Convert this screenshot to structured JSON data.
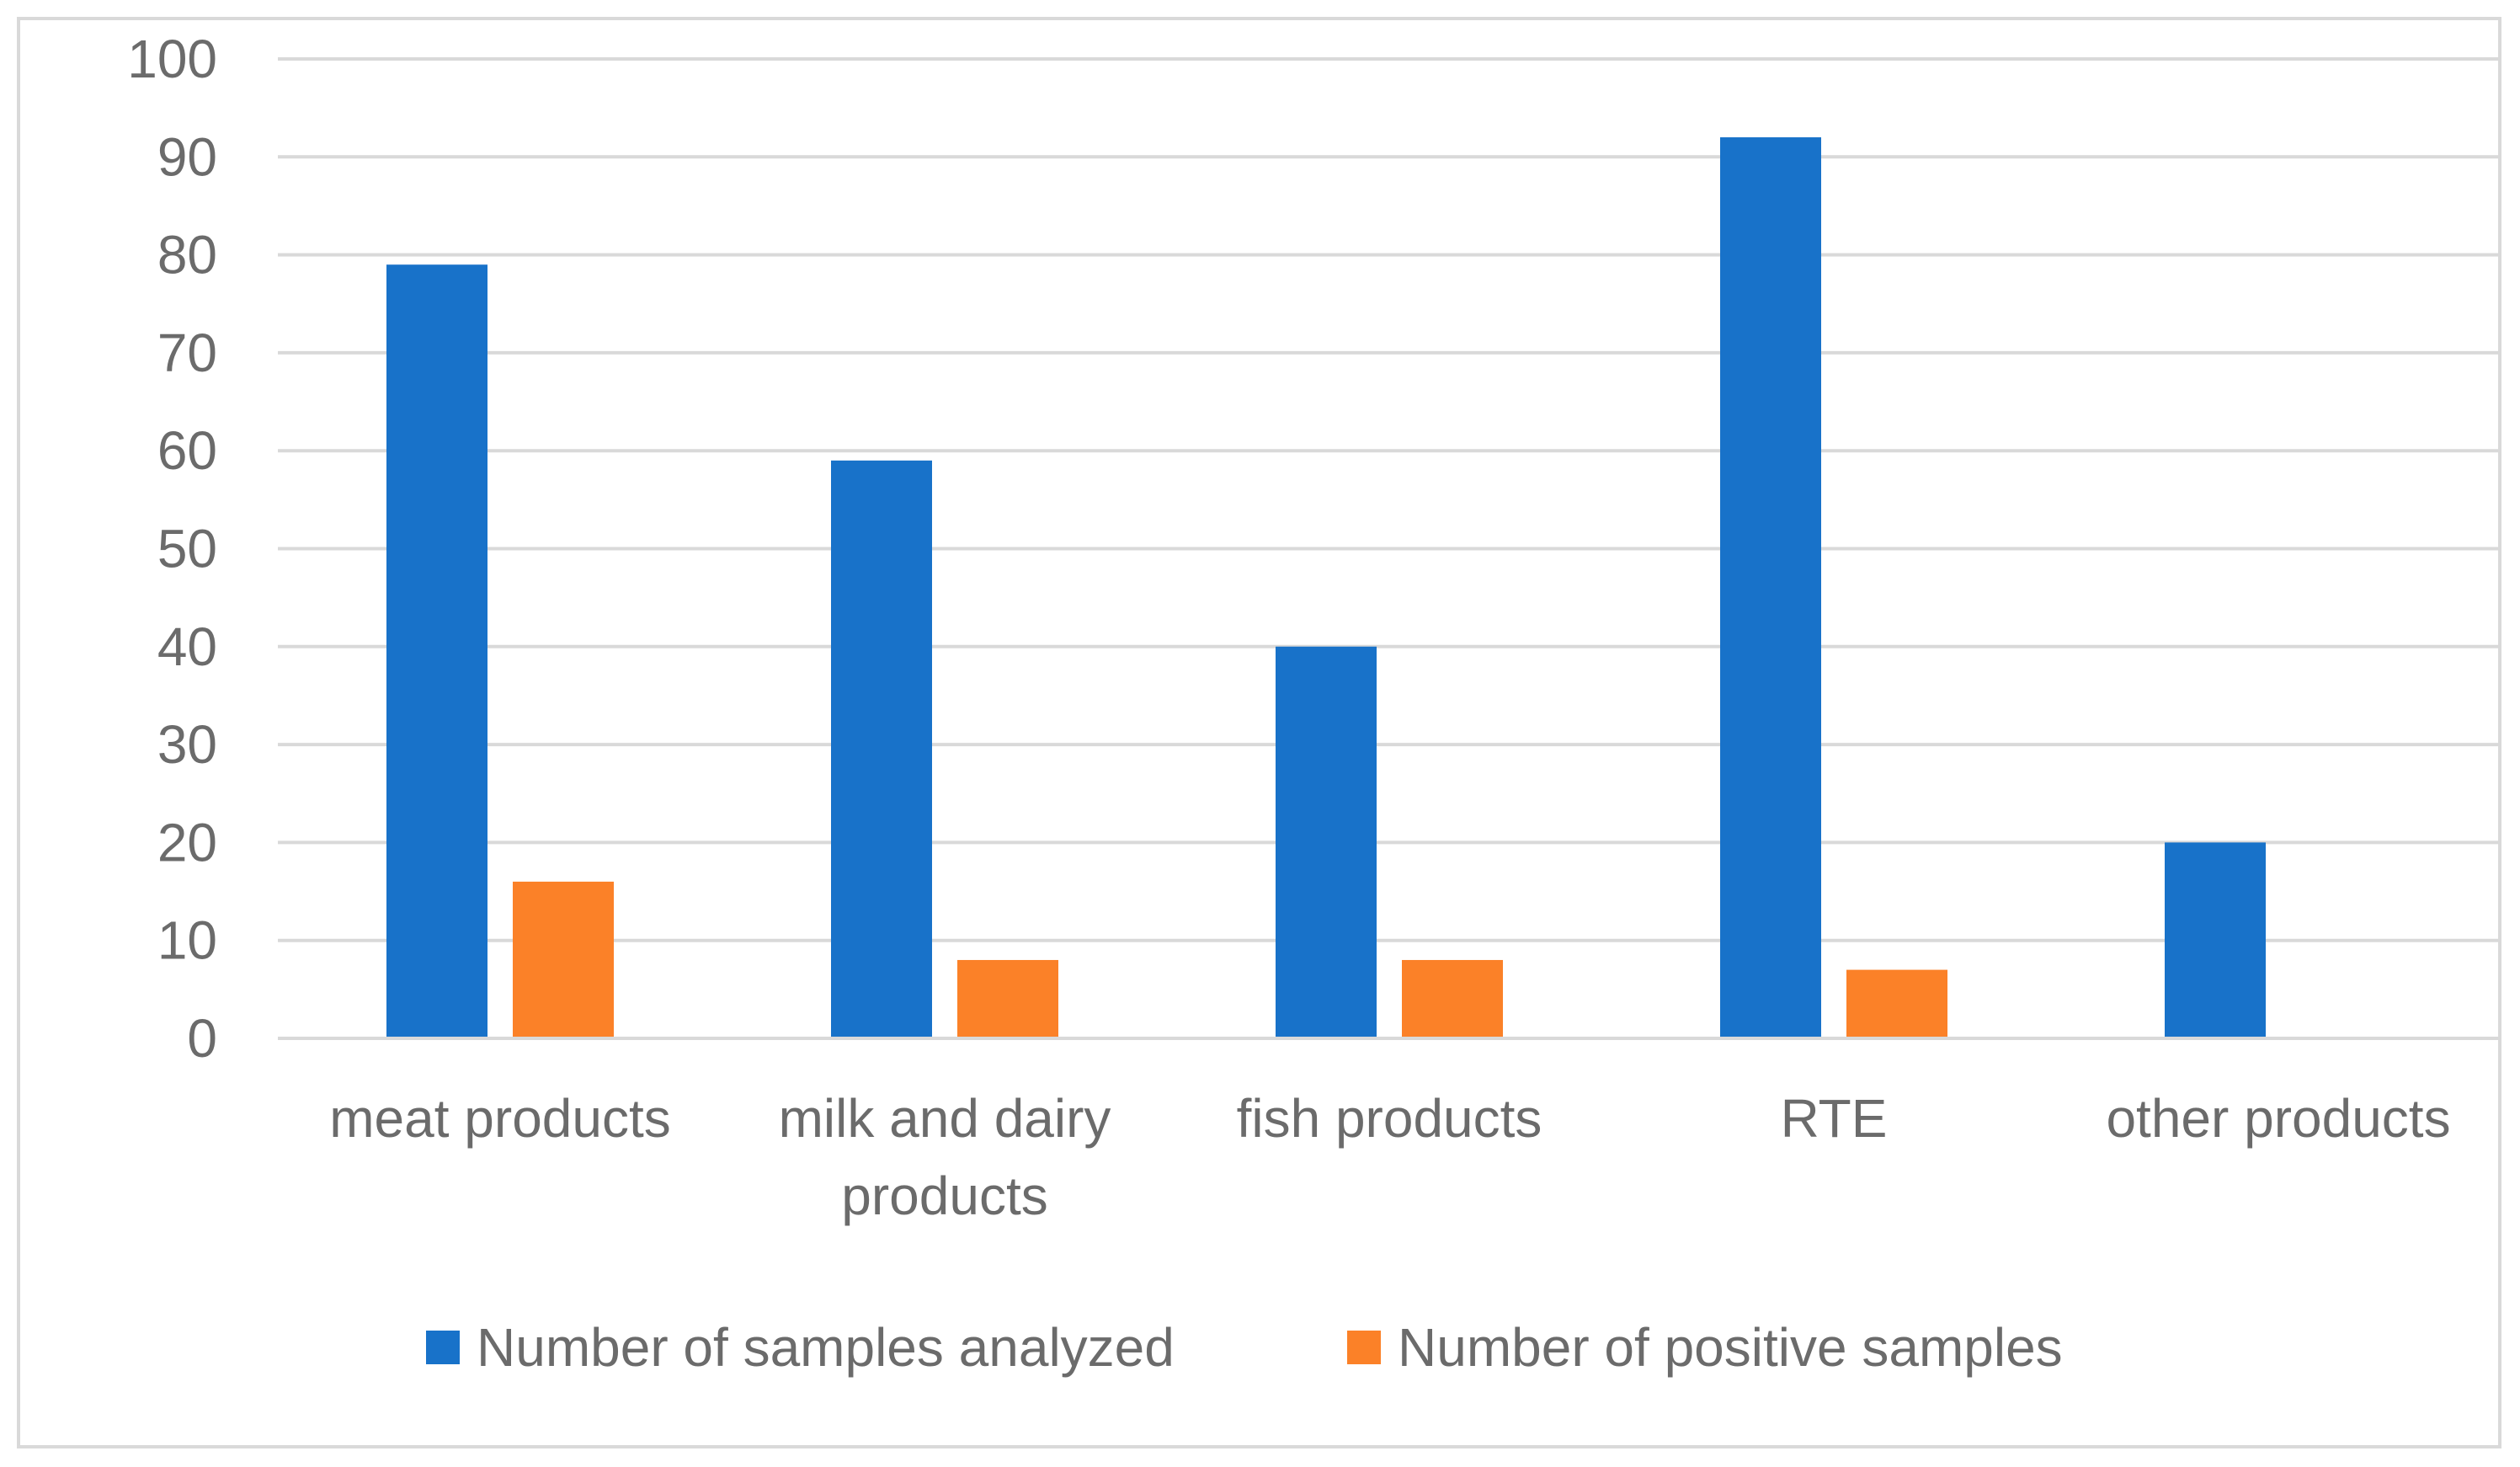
{
  "chart_data": {
    "type": "bar",
    "title": "",
    "xlabel": "",
    "ylabel": "",
    "categories": [
      [
        "meat products"
      ],
      [
        "milk and dairy",
        "products"
      ],
      [
        "fish products"
      ],
      [
        "RTE"
      ],
      [
        "other products"
      ]
    ],
    "series": [
      {
        "name": "Number of samples analyzed",
        "color": "#1872c9",
        "values": [
          79,
          59,
          40,
          92,
          20
        ]
      },
      {
        "name": "Number of positive samples",
        "color": "#fb8128",
        "values": [
          16,
          8,
          8,
          7,
          0
        ]
      }
    ],
    "ylim": [
      0,
      100
    ],
    "yticks": [
      0,
      10,
      20,
      30,
      40,
      50,
      60,
      70,
      80,
      90,
      100
    ],
    "grid": true,
    "legend_position": "bottom"
  }
}
